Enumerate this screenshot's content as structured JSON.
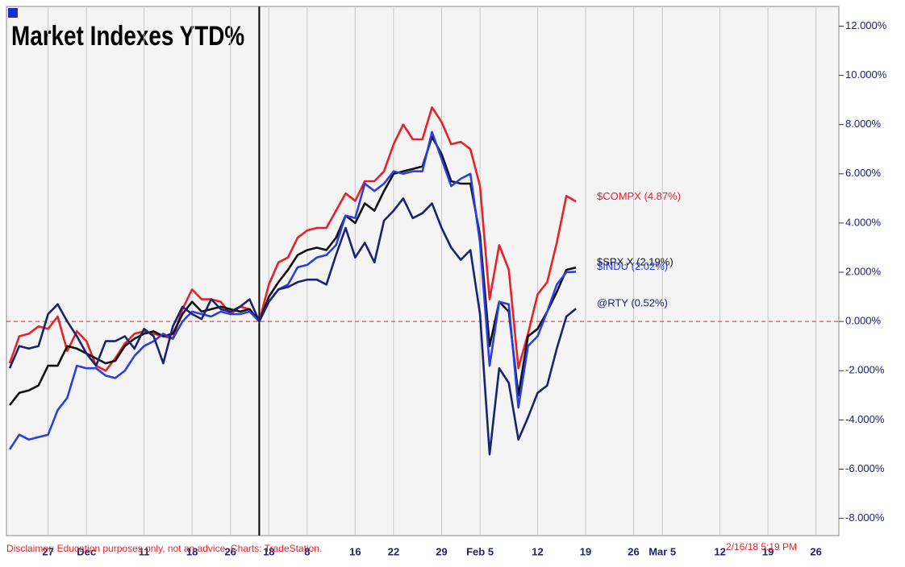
{
  "chart_data": {
    "type": "line",
    "title": "Market Indexes YTD%",
    "disclaimer": "Disclaimer: Education purposes only, not an advice.  Charts: TradeStation.",
    "timestamp": "2/16/18 5:19 PM",
    "categories": [
      null,
      null,
      null,
      null,
      "27",
      null,
      null,
      null,
      "Dec",
      null,
      null,
      null,
      null,
      null,
      "11",
      null,
      null,
      null,
      null,
      "18",
      null,
      null,
      null,
      "26",
      null,
      null,
      null,
      "18",
      null,
      null,
      null,
      "8",
      null,
      null,
      null,
      null,
      "16",
      null,
      null,
      null,
      "22",
      null,
      null,
      null,
      null,
      "29",
      null,
      null,
      null,
      "Feb 5",
      null,
      null,
      null,
      null,
      null,
      "12",
      null,
      null,
      null,
      null,
      "19",
      null,
      null,
      null,
      null,
      "26",
      null,
      null,
      "Mar 5",
      null,
      null,
      null,
      null,
      null,
      "12",
      null,
      null,
      null,
      null,
      "19",
      null,
      null,
      null,
      null,
      "26",
      null,
      null
    ],
    "series": [
      {
        "name": "$COMPX (4.87%)",
        "color": "#e8202a",
        "values": [
          -1.7,
          -0.6,
          -0.5,
          -0.2,
          -0.3,
          0.2,
          -1.2,
          -0.4,
          -0.8,
          -1.8,
          -2.0,
          -1.5,
          -0.9,
          -0.5,
          -0.4,
          -0.5,
          -0.6,
          -0.7,
          0.5,
          1.3,
          0.9,
          0.9,
          0.8,
          0.3,
          0.6,
          0.5,
          0.0,
          1.5,
          2.4,
          2.6,
          3.4,
          3.7,
          3.8,
          3.8,
          4.5,
          5.2,
          4.9,
          5.7,
          5.7,
          6.1,
          7.2,
          8.0,
          7.4,
          7.4,
          8.7,
          8.1,
          7.2,
          7.3,
          7.0,
          5.5,
          0.9,
          3.1,
          2.1,
          -1.9,
          -0.5,
          1.1,
          1.6,
          3.2,
          5.1,
          4.87,
          null,
          null,
          null,
          null,
          null,
          null,
          null,
          null,
          null,
          null,
          null,
          null,
          null,
          null,
          null,
          null,
          null,
          null,
          null,
          null,
          null,
          null,
          null,
          null,
          null,
          null,
          null
        ]
      },
      {
        "name": "$SPX.X (2.19%)",
        "color": "#111111",
        "values": [
          -3.4,
          -2.9,
          -2.8,
          -2.6,
          -1.8,
          -1.8,
          -1.0,
          -1.1,
          -1.3,
          -1.5,
          -1.7,
          -1.6,
          -1.0,
          -0.7,
          -0.5,
          -0.4,
          -0.6,
          -0.5,
          0.3,
          0.8,
          0.4,
          0.5,
          0.6,
          0.5,
          0.4,
          0.5,
          0.0,
          1.0,
          1.6,
          2.1,
          2.7,
          2.9,
          3.0,
          2.9,
          3.4,
          4.3,
          4.0,
          4.8,
          4.5,
          5.3,
          6.0,
          6.1,
          6.2,
          6.3,
          7.5,
          6.8,
          5.7,
          5.6,
          5.6,
          3.5,
          -1.0,
          0.8,
          0.4,
          -3.0,
          -0.6,
          -0.3,
          0.4,
          1.2,
          2.1,
          2.19,
          null,
          null,
          null,
          null,
          null,
          null,
          null,
          null,
          null,
          null,
          null,
          null,
          null,
          null,
          null,
          null,
          null,
          null,
          null,
          null,
          null,
          null,
          null,
          null,
          null,
          null,
          null
        ]
      },
      {
        "name": "$INDU (2.02%)",
        "color": "#2a3fe0",
        "values": [
          -5.2,
          -4.6,
          -4.8,
          -4.7,
          -4.6,
          -3.6,
          -3.1,
          -1.8,
          -1.9,
          -1.9,
          -2.2,
          -2.3,
          -2.0,
          -1.4,
          -1.0,
          -0.8,
          -0.5,
          -0.7,
          0.0,
          0.4,
          0.3,
          0.2,
          0.4,
          0.3,
          0.3,
          0.4,
          0.0,
          0.8,
          1.3,
          1.5,
          2.2,
          2.3,
          2.6,
          2.7,
          3.1,
          4.3,
          4.2,
          5.6,
          5.3,
          5.6,
          6.1,
          6.0,
          6.1,
          6.1,
          7.7,
          6.6,
          5.5,
          5.8,
          6.0,
          3.2,
          -1.8,
          0.8,
          0.7,
          -3.5,
          -1.0,
          -0.6,
          0.4,
          1.5,
          2.0,
          2.02,
          null,
          null,
          null,
          null,
          null,
          null,
          null,
          null,
          null,
          null,
          null,
          null,
          null,
          null,
          null,
          null,
          null,
          null,
          null,
          null,
          null,
          null,
          null,
          null,
          null,
          null,
          null
        ]
      },
      {
        "name": "@RTY (0.52%)",
        "color": "#1b2270",
        "values": [
          -1.9,
          -1.0,
          -1.1,
          -1.0,
          0.3,
          0.7,
          0.0,
          -0.6,
          -1.3,
          -1.8,
          -0.8,
          -0.8,
          -0.6,
          -1.1,
          -0.3,
          -0.6,
          -1.7,
          -0.2,
          0.6,
          0.3,
          0.1,
          0.9,
          0.5,
          0.4,
          0.6,
          0.9,
          0.0,
          0.8,
          1.3,
          1.4,
          1.6,
          1.7,
          1.7,
          1.5,
          2.7,
          3.8,
          2.6,
          3.2,
          2.4,
          4.1,
          4.5,
          5.0,
          4.2,
          4.4,
          4.8,
          3.8,
          3.0,
          2.5,
          2.9,
          0.3,
          -5.4,
          -1.9,
          -2.5,
          -4.8,
          -3.9,
          -2.9,
          -2.6,
          -1.1,
          0.2,
          0.52,
          null,
          null,
          null,
          null,
          null,
          null,
          null,
          null,
          null,
          null,
          null,
          null,
          null,
          null,
          null,
          null,
          null,
          null,
          null,
          null,
          null,
          null,
          null,
          null,
          null,
          null,
          null
        ]
      }
    ],
    "ylim": [
      -8.7,
      12.8
    ],
    "yticks": [
      {
        "value": -8,
        "label": "-8.000%"
      },
      {
        "value": -6,
        "label": "-6.000%"
      },
      {
        "value": -4,
        "label": "-4.000%"
      },
      {
        "value": -2,
        "label": "-2.000%"
      },
      {
        "value": 0,
        "label": "0.000%"
      },
      {
        "value": 2,
        "label": "2.000%"
      },
      {
        "value": 4,
        "label": "4.000%"
      },
      {
        "value": 6,
        "label": "6.000%"
      },
      {
        "value": 8,
        "label": "8.000%"
      },
      {
        "value": 10,
        "label": "10.000%"
      },
      {
        "value": 12,
        "label": "12.000%"
      }
    ],
    "grid": true
  }
}
